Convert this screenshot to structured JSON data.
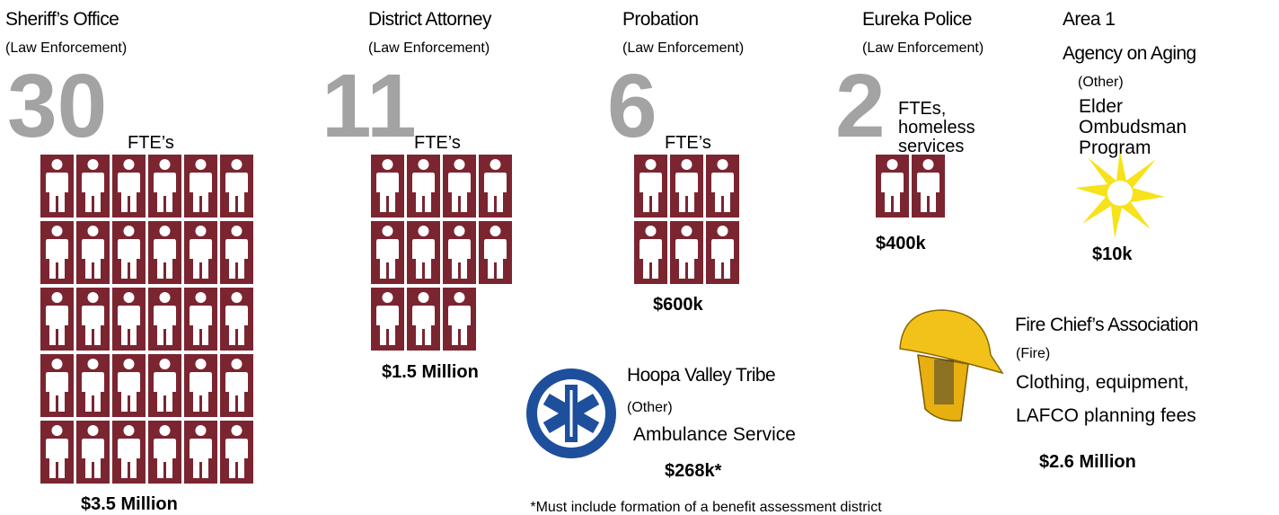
{
  "programs": [
    {
      "name": "Sheriff’s Office",
      "category": "(Law Enforcement)",
      "fte": 30,
      "unit": "FTE’s",
      "amount": "$3.5 Million"
    },
    {
      "name": "District Attorney",
      "category": "(Law Enforcement)",
      "fte": 11,
      "unit": "FTE’s",
      "amount": "$1.5 Million"
    },
    {
      "name": "Probation",
      "category": "(Law Enforcement)",
      "fte": 6,
      "unit": "FTE’s",
      "amount": "$600k"
    },
    {
      "name": "Eureka Police",
      "category": "(Law Enforcement)",
      "fte": 2,
      "unit_lines": [
        "FTEs,",
        "homeless",
        "services"
      ],
      "amount": "$400k"
    }
  ],
  "aging": {
    "name_lines": [
      "Area 1",
      "Agency on Aging"
    ],
    "category": "(Other)",
    "description_lines": [
      "Elder",
      "Ombudsman",
      "Program"
    ],
    "amount": "$10k"
  },
  "fire": {
    "name": "Fire Chief’s Association",
    "category": "(Fire)",
    "description_lines": [
      "Clothing, equipment,",
      "LAFCO planning fees"
    ],
    "amount": "$2.6 Million"
  },
  "hoopa": {
    "name": "Hoopa Valley Tribe",
    "category": "(Other)",
    "description": "Ambulance Service",
    "amount": "$268k*"
  },
  "footnote": "*Must include formation of  a benefit assessment district"
}
